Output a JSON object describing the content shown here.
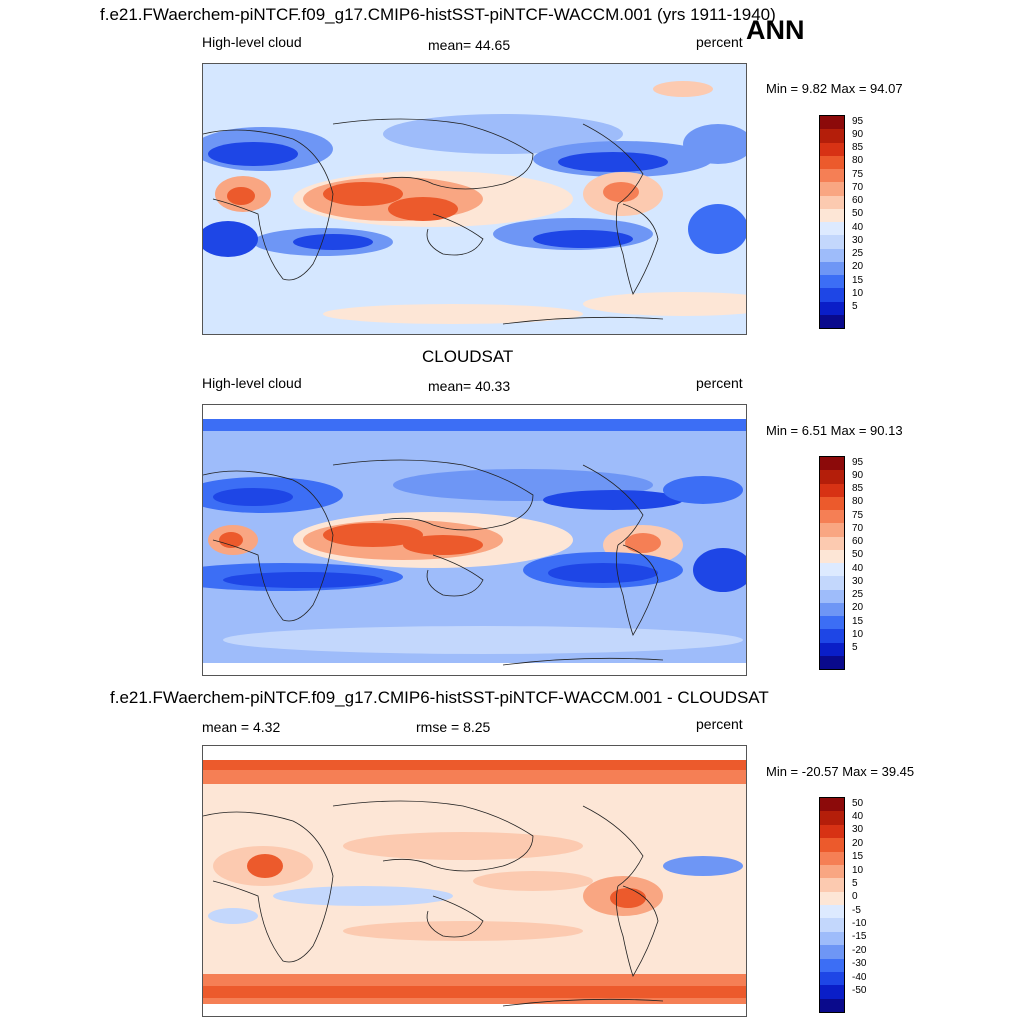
{
  "main_title": "f.e21.FWaerchem-piNTCF.f09_g17.CMIP6-histSST-piNTCF-WACCM.001 (yrs 1911-1940)",
  "season": "ANN",
  "palette": [
    "#0a0a8c",
    "#0a1ec8",
    "#1e46e6",
    "#3c6ef5",
    "#6e96f5",
    "#9ebcfa",
    "#c3d7fc",
    "#ddeaff",
    "#fde6d6",
    "#fccab0",
    "#f9a682",
    "#f57f55",
    "#ec5a2c",
    "#d73214",
    "#b41e0a",
    "#8c0a0a"
  ],
  "panels": [
    {
      "id": "model",
      "header": "",
      "left_label": "High-level cloud",
      "center_label": "mean=  44.65",
      "right_label": "percent",
      "minmax": "Min =   9.82 Max =  94.07",
      "colorbar_levels": [
        "95",
        "90",
        "85",
        "80",
        "75",
        "70",
        "60",
        "50",
        "40",
        "30",
        "25",
        "20",
        "15",
        "10",
        "5"
      ]
    },
    {
      "id": "obs",
      "header": "CLOUDSAT",
      "left_label": "High-level cloud",
      "center_label": "mean=  40.33",
      "right_label": "percent",
      "minmax": "Min =   6.51 Max =  90.13",
      "colorbar_levels": [
        "95",
        "90",
        "85",
        "80",
        "75",
        "70",
        "60",
        "50",
        "40",
        "30",
        "25",
        "20",
        "15",
        "10",
        "5"
      ]
    },
    {
      "id": "diff",
      "header": "f.e21.FWaerchem-piNTCF.f09_g17.CMIP6-histSST-piNTCF-WACCM.001 - CLOUDSAT",
      "left_label": "mean =   4.32",
      "center_label": "rmse =   8.25",
      "right_label": "percent",
      "minmax": "Min = -20.57 Max =  39.45",
      "colorbar_levels": [
        "50",
        "40",
        "30",
        "20",
        "15",
        "10",
        "5",
        "0",
        "-5",
        "-10",
        "-15",
        "-20",
        "-30",
        "-40",
        "-50"
      ]
    }
  ]
}
